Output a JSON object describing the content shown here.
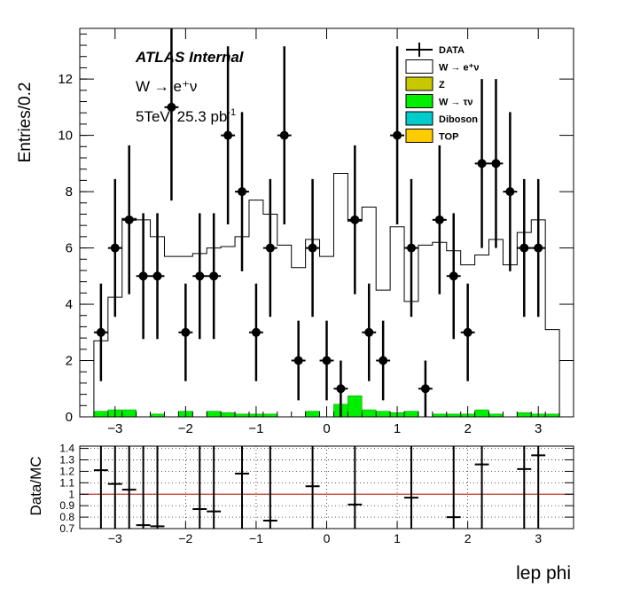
{
  "chart_data": [
    {
      "type": "histogram",
      "title": "",
      "xlabel": "lep phi",
      "ylabel": "Entries/0.2",
      "xlim": [
        -3.5,
        3.5
      ],
      "ylim": [
        0,
        13.8
      ],
      "x_ticks": [
        -3,
        -2,
        -1,
        0,
        1,
        2,
        3
      ],
      "y_ticks": [
        0,
        2,
        4,
        6,
        8,
        10,
        12
      ],
      "bin_width": 0.2,
      "annotations": {
        "experiment": "ATLAS Internal",
        "process": "W → e⁺ν",
        "energy_lumi_main": "5TeV, 25.3 pb",
        "energy_lumi_sup": "-1"
      },
      "legend": {
        "placement": "top-right",
        "entries": [
          {
            "label": "DATA",
            "style": "marker",
            "color": "#000000"
          },
          {
            "label": "W  → e⁺ν",
            "style": "box",
            "color": "#ffffff"
          },
          {
            "label": "Z",
            "style": "box",
            "color": "#c8c800"
          },
          {
            "label": "W  → τν",
            "style": "box",
            "color": "#00ee00"
          },
          {
            "label": "Diboson",
            "style": "box",
            "color": "#00cccc"
          },
          {
            "label": "TOP",
            "style": "box",
            "color": "#ffcc00"
          }
        ]
      },
      "mc_signal": {
        "name": "W  → e⁺ν",
        "bin_low_edges": [
          -3.3,
          -3.1,
          -2.9,
          -2.7,
          -2.5,
          -2.3,
          -2.1,
          -1.9,
          -1.7,
          -1.5,
          -1.3,
          -1.1,
          -0.9,
          -0.7,
          -0.5,
          -0.3,
          -0.1,
          0.1,
          0.3,
          0.5,
          0.7,
          0.9,
          1.1,
          1.3,
          1.5,
          1.7,
          1.9,
          2.1,
          2.3,
          2.5,
          2.7,
          2.9,
          3.1
        ],
        "values": [
          2.5,
          4.0,
          6.8,
          7.0,
          6.3,
          5.7,
          5.5,
          5.8,
          5.8,
          5.9,
          6.3,
          7.6,
          7.1,
          6.1,
          5.3,
          6.1,
          5.7,
          8.2,
          6.2,
          7.2,
          4.3,
          6.6,
          3.9,
          6.1,
          6.1,
          5.8,
          5.3,
          5.5,
          6.2,
          5.4,
          6.4,
          6.9,
          3.0
        ]
      },
      "mc_w_tau_nu": {
        "name": "W  → τν",
        "bin_low_edges": [
          -3.3,
          -3.1,
          -2.9,
          -2.7,
          -2.5,
          -2.3,
          -2.1,
          -1.9,
          -1.7,
          -1.5,
          -1.3,
          -1.1,
          -0.9,
          -0.7,
          -0.5,
          -0.3,
          -0.1,
          0.1,
          0.3,
          0.5,
          0.7,
          0.9,
          1.1,
          1.3,
          1.5,
          1.7,
          1.9,
          2.1,
          2.3,
          2.5,
          2.7,
          2.9,
          3.1
        ],
        "values": [
          0.2,
          0.25,
          0.25,
          0.0,
          0.1,
          0.0,
          0.2,
          0.0,
          0.2,
          0.15,
          0.1,
          0.1,
          0.1,
          0.0,
          0.0,
          0.2,
          0.0,
          0.45,
          0.75,
          0.25,
          0.2,
          0.15,
          0.2,
          0.0,
          0.1,
          0.1,
          0.1,
          0.25,
          0.1,
          0.0,
          0.15,
          0.1,
          0.1
        ]
      },
      "data_points": {
        "name": "DATA",
        "x": [
          -3.2,
          -3.0,
          -2.8,
          -2.6,
          -2.4,
          -2.2,
          -2.0,
          -1.8,
          -1.6,
          -1.4,
          -1.2,
          -1.0,
          -0.8,
          -0.6,
          -0.4,
          -0.2,
          0.0,
          0.2,
          0.4,
          0.6,
          0.8,
          1.0,
          1.2,
          1.4,
          1.6,
          1.8,
          2.0,
          2.2,
          2.4,
          2.6,
          2.8,
          3.0
        ],
        "y": [
          3,
          6,
          7,
          5,
          5,
          11,
          3,
          5,
          5,
          10,
          8,
          3,
          6,
          10,
          2,
          6,
          2,
          1,
          7,
          3,
          2,
          10,
          6,
          1,
          7,
          5,
          3,
          9,
          9,
          8,
          6,
          6
        ],
        "x_error_half_width": 0.1
      }
    },
    {
      "type": "scatter",
      "title": "",
      "xlabel": "",
      "ylabel": "Data/MC",
      "xlim": [
        -3.5,
        3.5
      ],
      "ylim": [
        0.7,
        1.42
      ],
      "x_ticks": [
        -3,
        -2,
        -1,
        0,
        1,
        2,
        3
      ],
      "y_ticks": [
        0.7,
        0.8,
        0.9,
        1,
        1.1,
        1.2,
        1.3,
        1.4
      ],
      "y_tick_labels": [
        "0.7",
        "0.8",
        "0.9",
        "1",
        "1.1",
        "1.2",
        "1.3",
        "1.4"
      ],
      "grid": true,
      "reference_line": {
        "y": 1.0,
        "color": "#c0392b"
      },
      "series": [
        {
          "x": [
            -3.2,
            -3.0,
            -2.8,
            -2.6,
            -2.4,
            -1.8,
            -1.6,
            -1.2,
            -0.8,
            -0.2,
            0.4,
            1.2,
            1.8,
            2.2,
            2.8,
            3.0
          ],
          "y": [
            1.21,
            1.09,
            1.04,
            0.73,
            0.72,
            0.87,
            0.85,
            1.18,
            0.77,
            1.07,
            0.91,
            0.97,
            0.8,
            1.26,
            1.22,
            1.34
          ],
          "x_error_half_width": 0.1
        }
      ]
    }
  ]
}
